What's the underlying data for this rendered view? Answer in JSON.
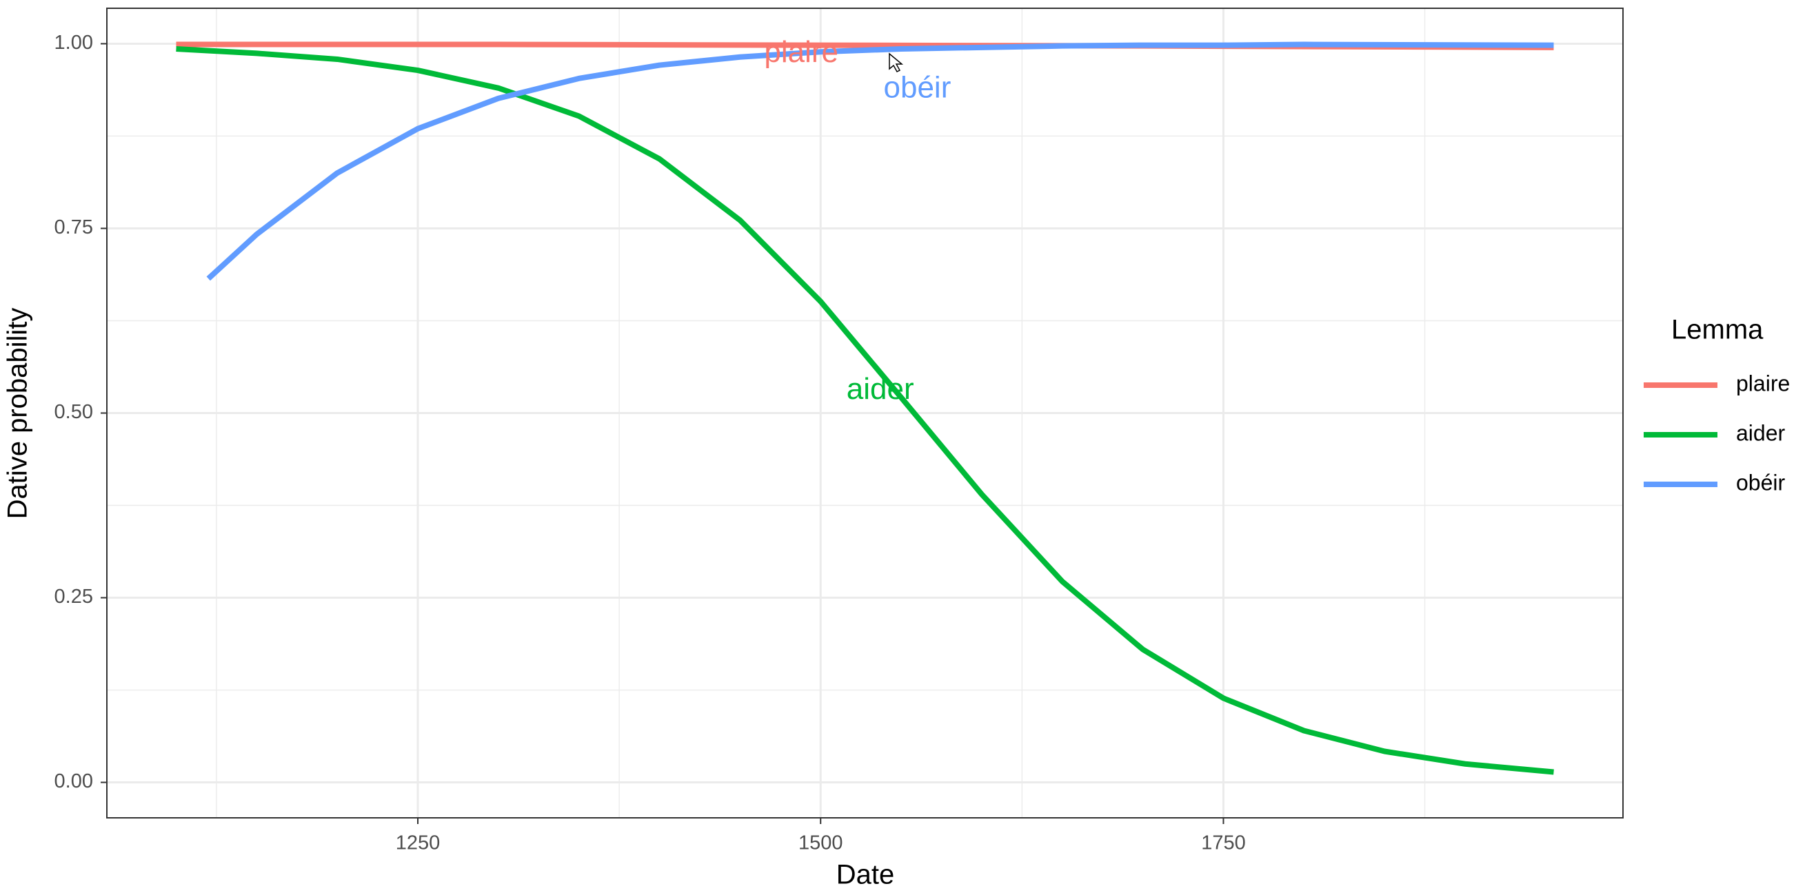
{
  "chart_data": {
    "type": "line",
    "xlabel": "Date",
    "ylabel": "Dative probability",
    "xlim": [
      1057,
      1998
    ],
    "ylim": [
      -0.048,
      1.048
    ],
    "xticks": [
      1250,
      1500,
      1750
    ],
    "x_minor_ticks": [
      1125,
      1375,
      1625,
      1875
    ],
    "yticks": [
      {
        "value": 0,
        "label": "0.00"
      },
      0.25,
      {
        "value": 0.5,
        "label": "0.50"
      },
      0.75,
      {
        "value": 1,
        "label": "1.00"
      }
    ],
    "y_minor_ticks": [
      0.125,
      0.375,
      0.625,
      0.875
    ],
    "grid": true,
    "legend": {
      "title": "Lemma",
      "position": "right"
    },
    "series": [
      {
        "name": "plaire",
        "color": "#f8766d",
        "x": [
          1100,
          1300,
          1500,
          1700,
          1955
        ],
        "values": [
          0.999,
          0.999,
          0.998,
          0.997,
          0.995
        ]
      },
      {
        "name": "aider",
        "color": "#00ba38",
        "x": [
          1100,
          1150,
          1200,
          1250,
          1300,
          1350,
          1400,
          1450,
          1500,
          1550,
          1600,
          1650,
          1700,
          1750,
          1800,
          1850,
          1900,
          1955
        ],
        "values": [
          0.993,
          0.987,
          0.979,
          0.964,
          0.94,
          0.902,
          0.844,
          0.761,
          0.651,
          0.521,
          0.39,
          0.272,
          0.18,
          0.114,
          0.07,
          0.042,
          0.025,
          0.014
        ]
      },
      {
        "name": "obéir",
        "color": "#619cff",
        "x": [
          1120,
          1150,
          1200,
          1250,
          1300,
          1350,
          1400,
          1450,
          1500,
          1550,
          1600,
          1650,
          1700,
          1750,
          1800,
          1955
        ],
        "values": [
          0.682,
          0.742,
          0.825,
          0.885,
          0.926,
          0.953,
          0.971,
          0.982,
          0.989,
          0.993,
          0.995,
          0.997,
          0.998,
          0.998,
          0.999,
          0.998
        ]
      }
    ],
    "annotations": [
      {
        "text": "plaire",
        "x": 1488,
        "y": 0.986,
        "color": "#f8766d"
      },
      {
        "text": "obéir",
        "x": 1560,
        "y": 0.938,
        "color": "#619cff"
      },
      {
        "text": "aider",
        "x": 1537,
        "y": 0.53,
        "color": "#00ba38"
      }
    ]
  }
}
